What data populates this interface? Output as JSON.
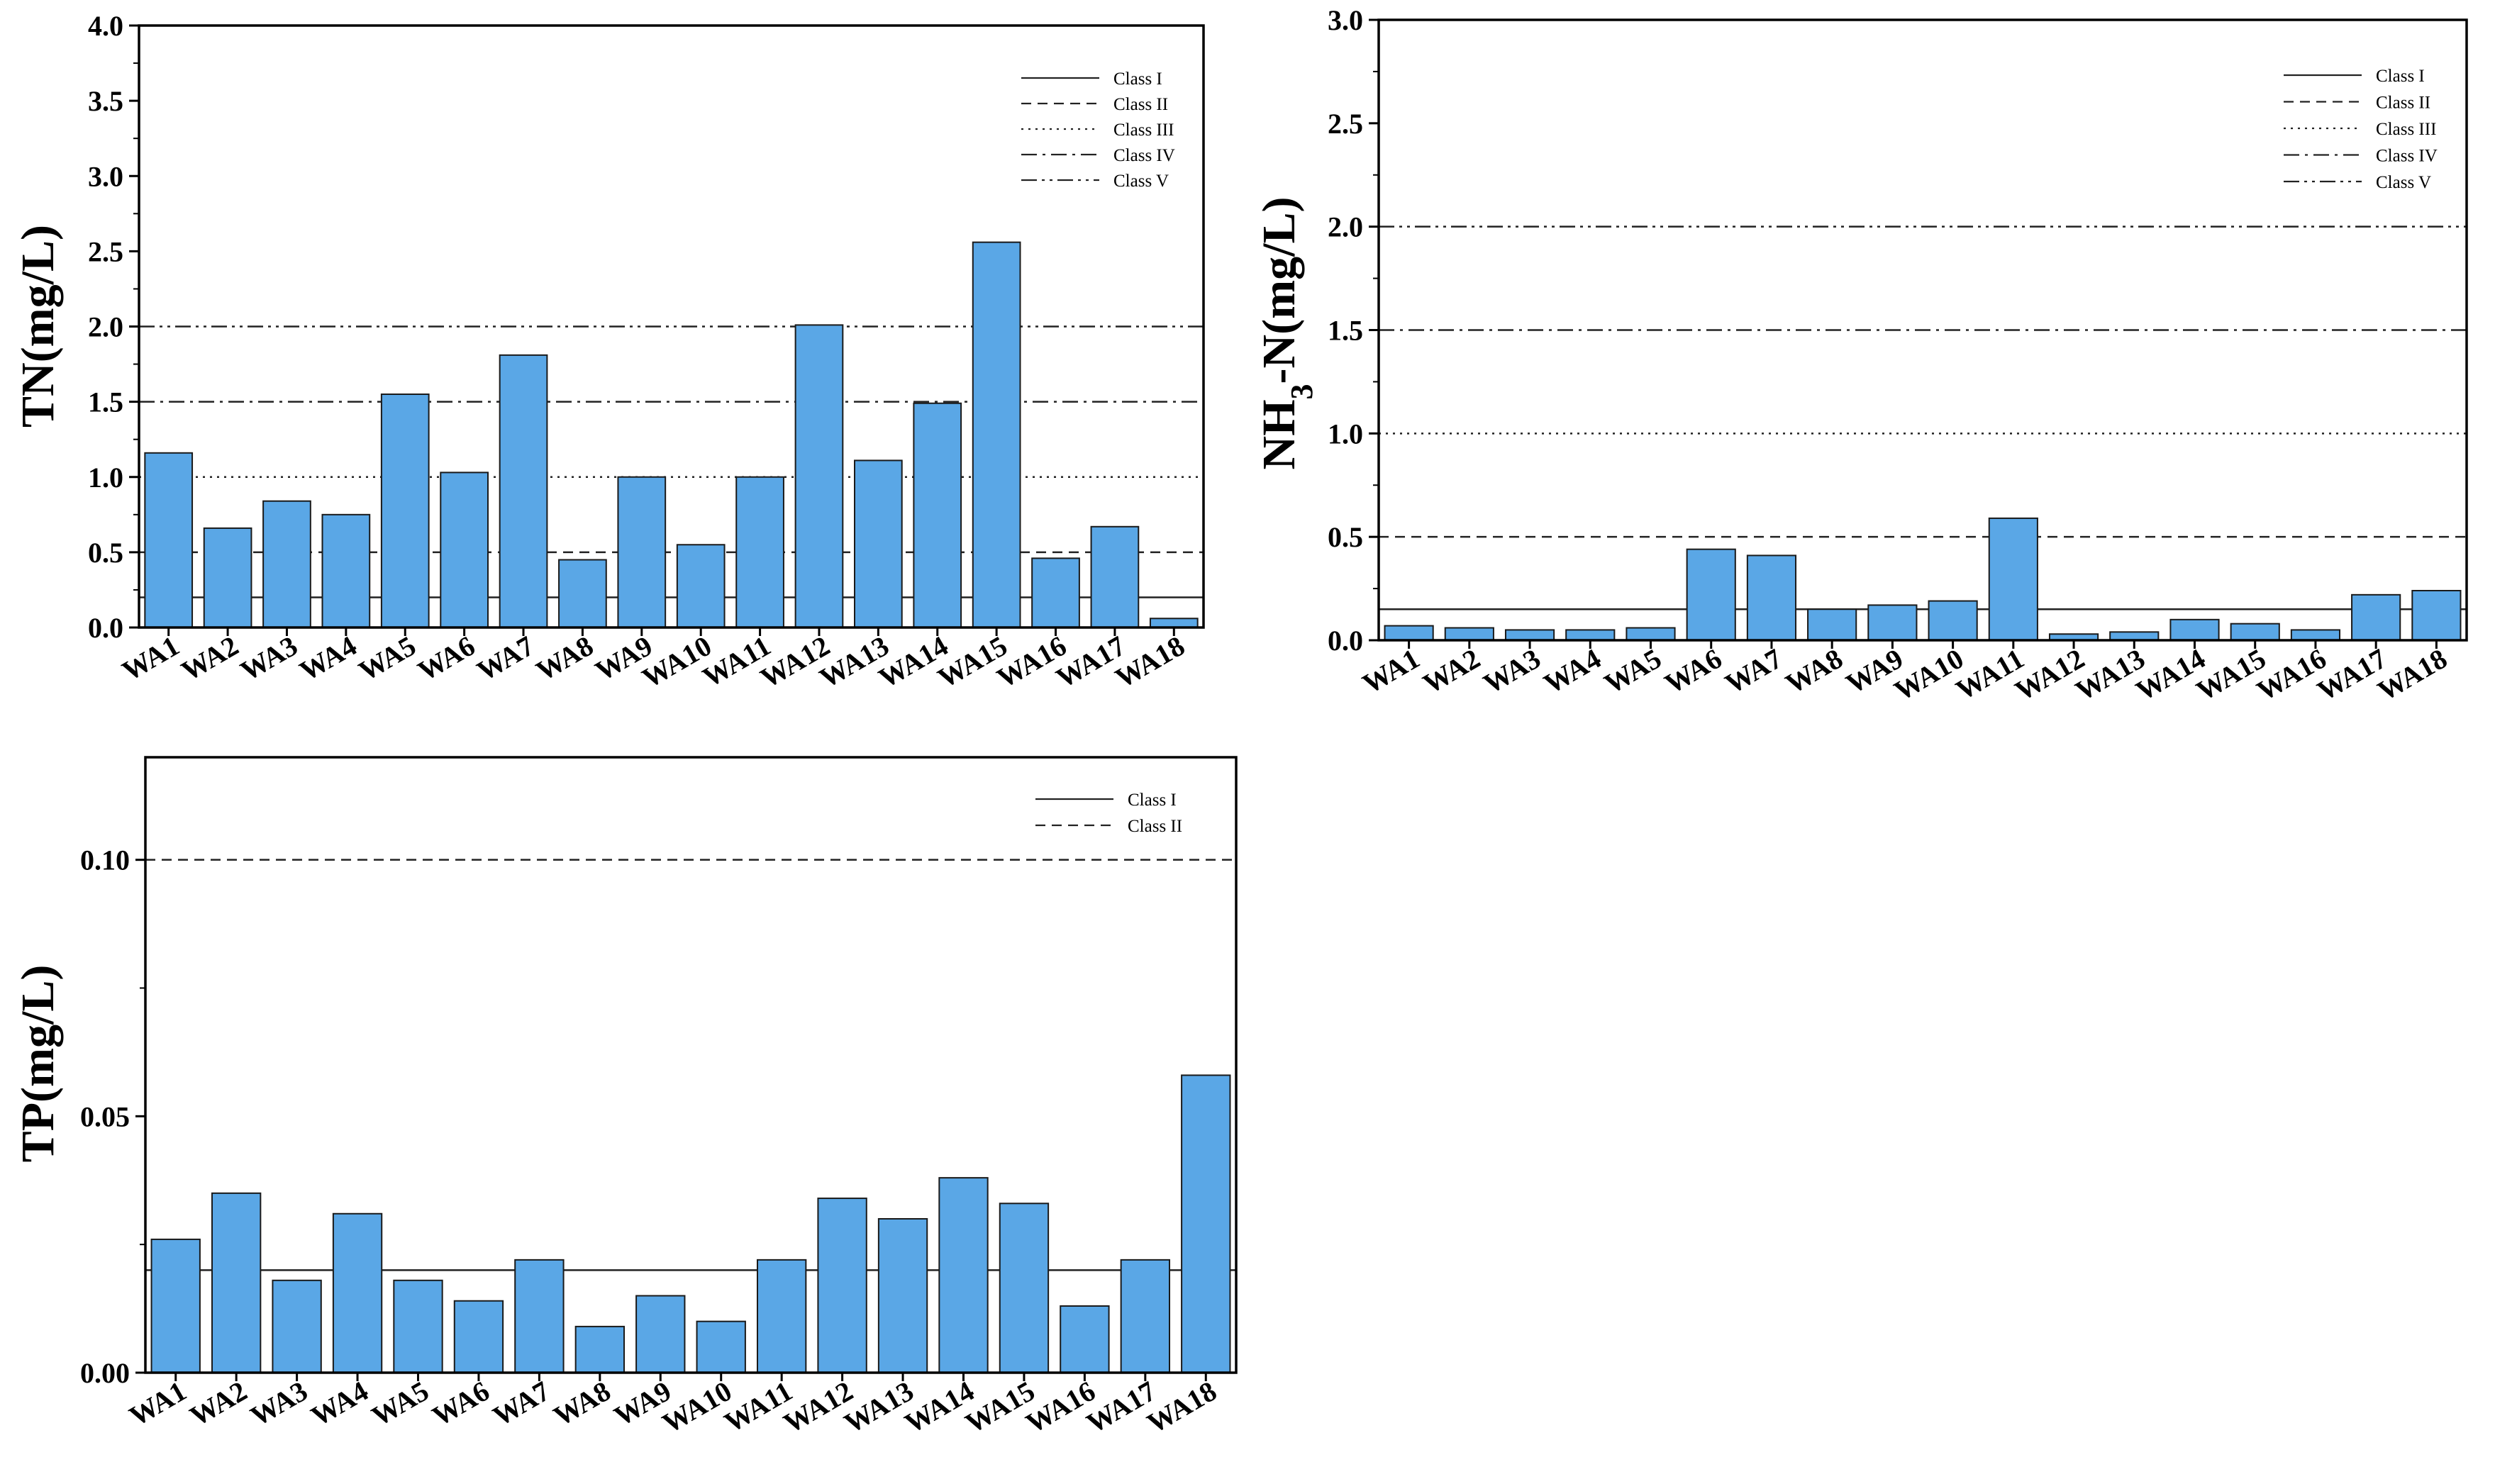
{
  "colors": {
    "bar": "#5aa7e6",
    "bar_stroke": "#1a1a1a",
    "axis": "#000000",
    "ref_line": "#222222"
  },
  "chart_data": [
    {
      "id": "tn",
      "type": "bar",
      "title": "",
      "ylabel": "TN(mg/L)",
      "xlabel": "",
      "ylim": [
        0,
        4.0
      ],
      "yticks": [
        "0.0",
        "0.5",
        "1.0",
        "1.5",
        "2.0",
        "2.5",
        "3.0",
        "3.5",
        "4.0"
      ],
      "categories": [
        "WA1",
        "WA2",
        "WA3",
        "WA4",
        "WA5",
        "WA6",
        "WA7",
        "WA8",
        "WA9",
        "WA10",
        "WA11",
        "WA12",
        "WA13",
        "WA14",
        "WA15",
        "WA16",
        "WA17",
        "WA18"
      ],
      "values": [
        1.16,
        0.66,
        0.84,
        0.75,
        1.55,
        1.03,
        1.81,
        0.45,
        1.0,
        0.55,
        1.0,
        2.01,
        1.11,
        1.49,
        2.56,
        0.46,
        0.67,
        0.06
      ],
      "legend_position": "top-right",
      "reference_lines": [
        {
          "name": "Class I",
          "value": 0.2,
          "style": "solid"
        },
        {
          "name": "Class II",
          "value": 0.5,
          "style": "dashed"
        },
        {
          "name": "Class III",
          "value": 1.0,
          "style": "dotted"
        },
        {
          "name": "Class IV",
          "value": 1.5,
          "style": "dashdot"
        },
        {
          "name": "Class V",
          "value": 2.0,
          "style": "dashdotdot"
        }
      ]
    },
    {
      "id": "nh3",
      "type": "bar",
      "title": "",
      "ylabel": "NH3-N(mg/L)",
      "ylabel_parts": [
        "NH",
        "3",
        "-N(mg/L)"
      ],
      "xlabel": "",
      "ylim": [
        0,
        3.0
      ],
      "yticks": [
        "0.0",
        "0.5",
        "1.0",
        "1.5",
        "2.0",
        "2.5",
        "3.0"
      ],
      "categories": [
        "WA1",
        "WA2",
        "WA3",
        "WA4",
        "WA5",
        "WA6",
        "WA7",
        "WA8",
        "WA9",
        "WA10",
        "WA11",
        "WA12",
        "WA13",
        "WA14",
        "WA15",
        "WA16",
        "WA17",
        "WA18"
      ],
      "values": [
        0.07,
        0.06,
        0.05,
        0.05,
        0.06,
        0.44,
        0.41,
        0.15,
        0.17,
        0.19,
        0.59,
        0.03,
        0.04,
        0.1,
        0.08,
        0.05,
        0.22,
        0.24
      ],
      "legend_position": "top-right",
      "reference_lines": [
        {
          "name": "Class I",
          "value": 0.15,
          "style": "solid"
        },
        {
          "name": "Class II",
          "value": 0.5,
          "style": "dashed"
        },
        {
          "name": "Class III",
          "value": 1.0,
          "style": "dotted"
        },
        {
          "name": "Class IV",
          "value": 1.5,
          "style": "dashdot"
        },
        {
          "name": "Class V",
          "value": 2.0,
          "style": "dashdotdot"
        }
      ]
    },
    {
      "id": "tp",
      "type": "bar",
      "title": "",
      "ylabel": "TP(mg/L)",
      "xlabel": "",
      "ylim": [
        0,
        0.12
      ],
      "yticks": [
        "0.00",
        "0.05",
        "0.10"
      ],
      "ytick_values": [
        0,
        0.05,
        0.1
      ],
      "categories": [
        "WA1",
        "WA2",
        "WA3",
        "WA4",
        "WA5",
        "WA6",
        "WA7",
        "WA8",
        "WA9",
        "WA10",
        "WA11",
        "WA12",
        "WA13",
        "WA14",
        "WA15",
        "WA16",
        "WA17",
        "WA18"
      ],
      "values": [
        0.026,
        0.035,
        0.018,
        0.031,
        0.018,
        0.014,
        0.022,
        0.009,
        0.015,
        0.01,
        0.022,
        0.034,
        0.03,
        0.038,
        0.033,
        0.013,
        0.022,
        0.058
      ],
      "legend_position": "top-right",
      "reference_lines": [
        {
          "name": "Class I",
          "value": 0.02,
          "style": "solid"
        },
        {
          "name": "Class II",
          "value": 0.1,
          "style": "dashed"
        }
      ]
    }
  ]
}
